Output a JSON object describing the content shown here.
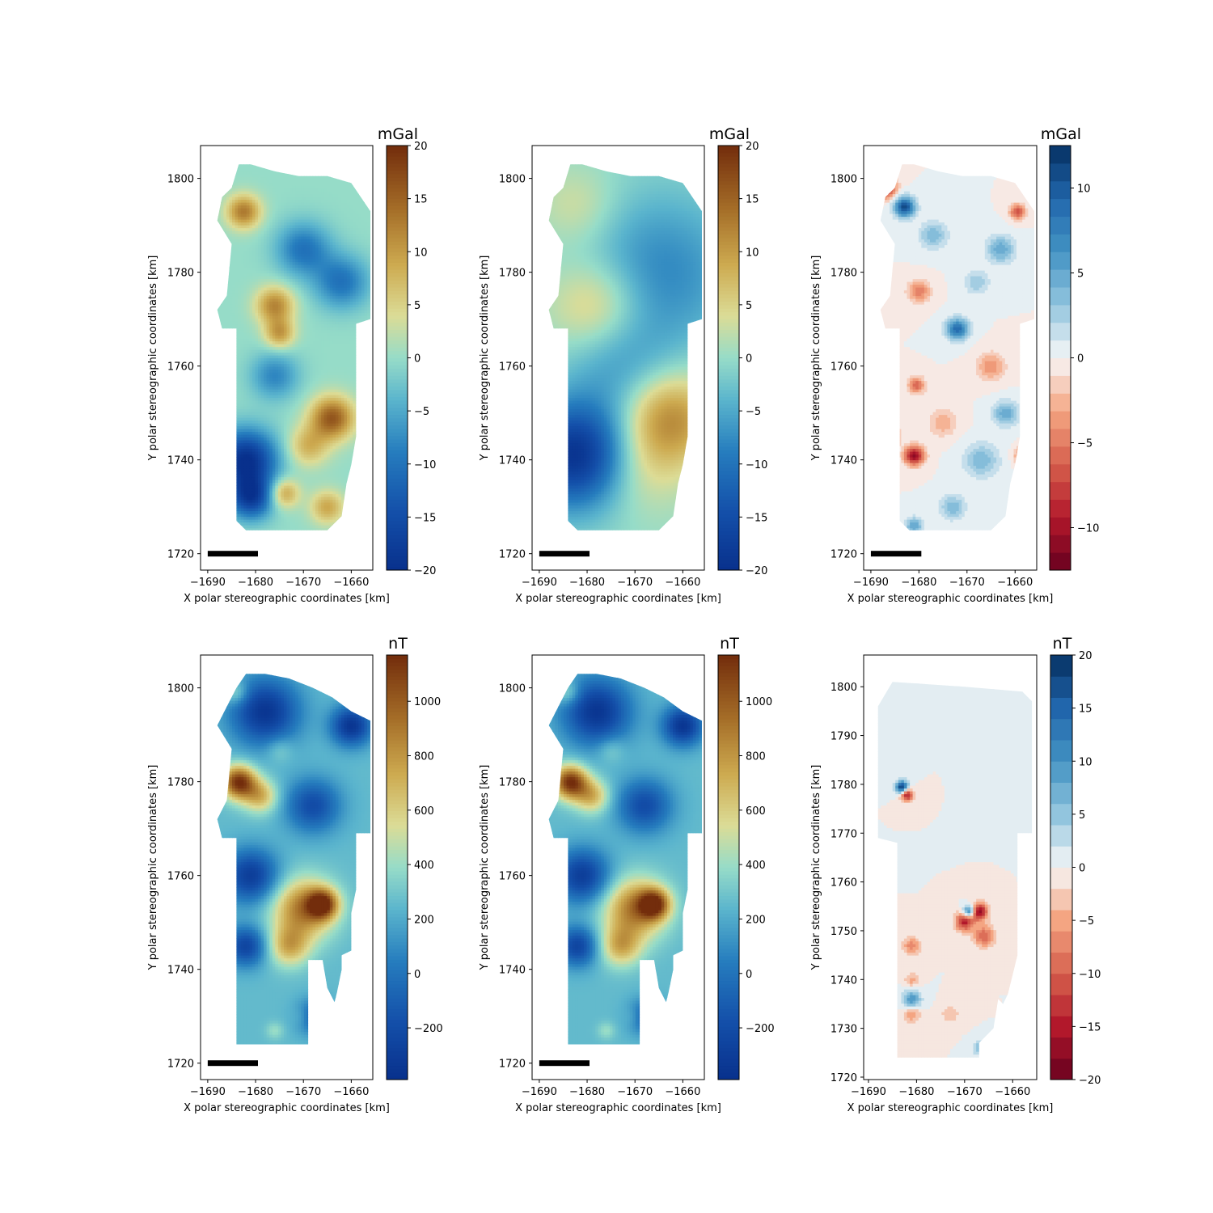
{
  "chart_data": [
    {
      "type": "heatmap",
      "panel": "gravity-observed",
      "xlabel": "X polar stereographic coordinates [km]",
      "ylabel": "Y polar stereographic coordinates [km]",
      "xlim": [
        -1691.5,
        -1655.5
      ],
      "ylim": [
        1716.5,
        1807
      ],
      "xticks": [
        -1690,
        -1680,
        -1670,
        -1660
      ],
      "yticks": [
        1720,
        1740,
        1760,
        1780,
        1800
      ],
      "scale_bar": {
        "x_start": -1690,
        "x_end": -1679.5,
        "y": 1720
      },
      "colorbar": {
        "label": "mGal",
        "cmap": "yellow-green-blue-brown",
        "vmin": -20,
        "vmax": 20,
        "ticks": [
          -20,
          -15,
          -10,
          -5,
          0,
          5,
          10,
          15,
          20
        ],
        "discrete": false
      },
      "anomalies": [
        {
          "x": -1682.5,
          "y": 1793,
          "v": 13,
          "r": 2.5
        },
        {
          "x": -1676,
          "y": 1773,
          "v": 12,
          "r": 2.8
        },
        {
          "x": -1675,
          "y": 1767,
          "v": 10,
          "r": 2.2
        },
        {
          "x": -1664,
          "y": 1749,
          "v": 16,
          "r": 3.2
        },
        {
          "x": -1669,
          "y": 1743,
          "v": 8,
          "r": 3
        },
        {
          "x": -1674,
          "y": 1733,
          "v": 10,
          "r": 2.2
        },
        {
          "x": -1665,
          "y": 1730,
          "v": 9,
          "r": 2.5
        },
        {
          "x": -1682,
          "y": 1740,
          "v": -20,
          "r": 4.5
        },
        {
          "x": -1681,
          "y": 1732,
          "v": -16,
          "r": 3.2
        },
        {
          "x": -1670,
          "y": 1785,
          "v": -10,
          "r": 4
        },
        {
          "x": -1662,
          "y": 1778,
          "v": -10,
          "r": 4
        },
        {
          "x": -1676,
          "y": 1758,
          "v": -8,
          "r": 3.5
        }
      ]
    },
    {
      "type": "heatmap",
      "panel": "gravity-regional",
      "xlabel": "X polar stereographic coordinates [km]",
      "ylabel": "Y polar stereographic coordinates [km]",
      "xlim": [
        -1691.5,
        -1655.5
      ],
      "ylim": [
        1716.5,
        1807
      ],
      "xticks": [
        -1690,
        -1680,
        -1670,
        -1660
      ],
      "yticks": [
        1720,
        1740,
        1760,
        1780,
        1800
      ],
      "scale_bar": {
        "x_start": -1690,
        "x_end": -1679.5,
        "y": 1720
      },
      "colorbar": {
        "label": "mGal",
        "cmap": "yellow-green-blue-brown",
        "vmin": -20,
        "vmax": 20,
        "ticks": [
          -20,
          -15,
          -10,
          -5,
          0,
          5,
          10,
          15,
          20
        ],
        "discrete": false
      },
      "anomalies": [
        {
          "x": -1678,
          "y": 1773,
          "v": 8,
          "r": 7
        },
        {
          "x": -1682,
          "y": 1794,
          "v": 4,
          "r": 6
        },
        {
          "x": -1663,
          "y": 1749,
          "v": 12,
          "r": 7
        },
        {
          "x": -1670,
          "y": 1738,
          "v": 5,
          "r": 7
        },
        {
          "x": -1682,
          "y": 1741,
          "v": -20,
          "r": 8
        },
        {
          "x": -1665,
          "y": 1780,
          "v": -8,
          "r": 12
        },
        {
          "x": -1673,
          "y": 1760,
          "v": -5,
          "r": 8
        }
      ]
    },
    {
      "type": "heatmap",
      "panel": "gravity-residual",
      "xlabel": "X polar stereographic coordinates [km]",
      "ylabel": "Y polar stereographic coordinates [km]",
      "xlim": [
        -1691.5,
        -1655.5
      ],
      "ylim": [
        1716.5,
        1807
      ],
      "xticks": [
        -1690,
        -1680,
        -1670,
        -1660
      ],
      "yticks": [
        1720,
        1740,
        1760,
        1780,
        1800
      ],
      "scale_bar": {
        "x_start": -1690,
        "x_end": -1679.5,
        "y": 1720
      },
      "colorbar": {
        "label": "mGal",
        "cmap": "red-white-blue",
        "vmin": -12.5,
        "vmax": 12.5,
        "ticks": [
          -10,
          -5,
          0,
          5,
          10
        ],
        "discrete": true,
        "levels": 24
      },
      "anomalies": [
        {
          "x": -1687,
          "y": 1798,
          "v": -10,
          "r": 1.5
        },
        {
          "x": -1683,
          "y": 1794,
          "v": 11,
          "r": 1.5
        },
        {
          "x": -1681,
          "y": 1741,
          "v": -11,
          "r": 1.4
        },
        {
          "x": -1672,
          "y": 1768,
          "v": 9,
          "r": 1.6
        },
        {
          "x": -1659.5,
          "y": 1793,
          "v": -7,
          "r": 1.1
        },
        {
          "x": -1680,
          "y": 1776,
          "v": -5,
          "r": 1.6
        },
        {
          "x": -1677,
          "y": 1788,
          "v": 4,
          "r": 2
        },
        {
          "x": -1663,
          "y": 1785,
          "v": 5,
          "r": 2
        },
        {
          "x": -1680.5,
          "y": 1756,
          "v": -6,
          "r": 1.2
        },
        {
          "x": -1665,
          "y": 1760,
          "v": -4,
          "r": 2
        },
        {
          "x": -1667,
          "y": 1740,
          "v": 4,
          "r": 2.5
        },
        {
          "x": -1675,
          "y": 1748,
          "v": -3,
          "r": 2
        },
        {
          "x": -1662,
          "y": 1750,
          "v": 5,
          "r": 1.8
        },
        {
          "x": -1673,
          "y": 1730,
          "v": 4,
          "r": 1.8
        },
        {
          "x": -1686,
          "y": 1745,
          "v": -6,
          "r": 1.3
        },
        {
          "x": -1668,
          "y": 1778,
          "v": 3,
          "r": 1.8
        },
        {
          "x": -1658.5,
          "y": 1741,
          "v": -5,
          "r": 1.2
        },
        {
          "x": -1681,
          "y": 1726,
          "v": 5,
          "r": 1.3
        }
      ]
    },
    {
      "type": "heatmap",
      "panel": "magnetic-observed",
      "xlabel": "X polar stereographic coordinates [km]",
      "ylabel": "Y polar stereographic coordinates [km]",
      "xlim": [
        -1691.5,
        -1655.5
      ],
      "ylim": [
        1716.5,
        1807
      ],
      "xticks": [
        -1690,
        -1680,
        -1670,
        -1660
      ],
      "yticks": [
        1720,
        1740,
        1760,
        1780,
        1800
      ],
      "scale_bar": {
        "x_start": -1690,
        "x_end": -1679.5,
        "y": 1720
      },
      "colorbar": {
        "label": "nT",
        "cmap": "yellow-green-blue-brown",
        "vmin": -390,
        "vmax": 1170,
        "ticks": [
          -200,
          0,
          200,
          400,
          600,
          800,
          1000
        ],
        "discrete": false
      },
      "anomalies": [
        {
          "x": -1683.5,
          "y": 1780,
          "v": 1150,
          "r": 2.5
        },
        {
          "x": -1679,
          "y": 1777,
          "v": 700,
          "r": 2.5
        },
        {
          "x": -1670,
          "y": 1753,
          "v": 900,
          "r": 4.5
        },
        {
          "x": -1666,
          "y": 1754,
          "v": 1000,
          "r": 2.2
        },
        {
          "x": -1673,
          "y": 1745,
          "v": 700,
          "r": 3
        },
        {
          "x": -1684,
          "y": 1799,
          "v": 500,
          "r": 1.8
        },
        {
          "x": -1675,
          "y": 1787,
          "v": 400,
          "r": 2
        },
        {
          "x": -1670,
          "y": 1730,
          "v": 400,
          "r": 1.6
        },
        {
          "x": -1676,
          "y": 1727,
          "v": 400,
          "r": 1.3
        },
        {
          "x": -1678,
          "y": 1795,
          "v": -350,
          "r": 5
        },
        {
          "x": -1660,
          "y": 1792,
          "v": -350,
          "r": 3
        },
        {
          "x": -1681,
          "y": 1760,
          "v": -300,
          "r": 4
        },
        {
          "x": -1668,
          "y": 1775,
          "v": -200,
          "r": 4
        },
        {
          "x": -1682,
          "y": 1745,
          "v": -250,
          "r": 3
        },
        {
          "x": -1668,
          "y": 1730,
          "v": -150,
          "r": 2.5
        }
      ]
    },
    {
      "type": "heatmap",
      "panel": "magnetic-filtered",
      "xlabel": "X polar stereographic coordinates [km]",
      "ylabel": "Y polar stereographic coordinates [km]",
      "xlim": [
        -1691.5,
        -1655.5
      ],
      "ylim": [
        1716.5,
        1807
      ],
      "xticks": [
        -1690,
        -1680,
        -1670,
        -1660
      ],
      "yticks": [
        1720,
        1740,
        1760,
        1780,
        1800
      ],
      "scale_bar": {
        "x_start": -1690,
        "x_end": -1679.5,
        "y": 1720
      },
      "colorbar": {
        "label": "nT",
        "cmap": "yellow-green-blue-brown",
        "vmin": -390,
        "vmax": 1170,
        "ticks": [
          -200,
          0,
          200,
          400,
          600,
          800,
          1000
        ],
        "discrete": false
      },
      "anomalies": [
        {
          "x": -1683.5,
          "y": 1780,
          "v": 1150,
          "r": 2.5
        },
        {
          "x": -1679,
          "y": 1777,
          "v": 700,
          "r": 2.5
        },
        {
          "x": -1670,
          "y": 1753,
          "v": 900,
          "r": 4.5
        },
        {
          "x": -1666,
          "y": 1754,
          "v": 1000,
          "r": 2.2
        },
        {
          "x": -1673,
          "y": 1745,
          "v": 700,
          "r": 3
        },
        {
          "x": -1684,
          "y": 1799,
          "v": 500,
          "r": 1.8
        },
        {
          "x": -1675,
          "y": 1787,
          "v": 400,
          "r": 2
        },
        {
          "x": -1670,
          "y": 1730,
          "v": 400,
          "r": 1.6
        },
        {
          "x": -1676,
          "y": 1727,
          "v": 400,
          "r": 1.3
        },
        {
          "x": -1678,
          "y": 1795,
          "v": -350,
          "r": 5
        },
        {
          "x": -1660,
          "y": 1792,
          "v": -350,
          "r": 3
        },
        {
          "x": -1681,
          "y": 1760,
          "v": -300,
          "r": 4
        },
        {
          "x": -1668,
          "y": 1775,
          "v": -200,
          "r": 4
        },
        {
          "x": -1682,
          "y": 1745,
          "v": -250,
          "r": 3
        },
        {
          "x": -1668,
          "y": 1730,
          "v": -150,
          "r": 2.5
        }
      ]
    },
    {
      "type": "heatmap",
      "panel": "magnetic-residual",
      "xlabel": "X polar stereographic coordinates [km]",
      "ylabel": "Y polar stereographic coordinates [km]",
      "xlim": [
        -1691,
        -1655
      ],
      "ylim": [
        1719.5,
        1806.5
      ],
      "xticks": [
        -1690,
        -1680,
        -1670,
        -1660
      ],
      "yticks": [
        1720,
        1730,
        1740,
        1750,
        1760,
        1770,
        1780,
        1790,
        1800
      ],
      "colorbar": {
        "label": "nT",
        "cmap": "red-white-blue",
        "vmin": -20,
        "vmax": 20,
        "ticks": [
          -20,
          -15,
          -10,
          -5,
          0,
          5,
          10,
          15,
          20
        ],
        "discrete": true,
        "levels": 20
      },
      "anomalies": [
        {
          "x": -1683,
          "y": 1779.5,
          "v": 20,
          "r": 0.9
        },
        {
          "x": -1682,
          "y": 1778,
          "v": -16,
          "r": 0.9
        },
        {
          "x": -1670,
          "y": 1752,
          "v": -15,
          "r": 1.3
        },
        {
          "x": -1667,
          "y": 1754,
          "v": -18,
          "r": 1.2
        },
        {
          "x": -1669,
          "y": 1754,
          "v": 16,
          "r": 0.9
        },
        {
          "x": -1666,
          "y": 1749,
          "v": -10,
          "r": 1.5
        },
        {
          "x": -1681,
          "y": 1747,
          "v": -7,
          "r": 1.3
        },
        {
          "x": -1681,
          "y": 1736,
          "v": 10,
          "r": 1.3
        },
        {
          "x": -1681,
          "y": 1733,
          "v": -6,
          "r": 1.3
        },
        {
          "x": -1681,
          "y": 1740,
          "v": -5,
          "r": 1
        },
        {
          "x": -1673,
          "y": 1733,
          "v": -4,
          "r": 1.3
        },
        {
          "x": -1667,
          "y": 1726,
          "v": 6,
          "r": 1
        }
      ]
    }
  ]
}
